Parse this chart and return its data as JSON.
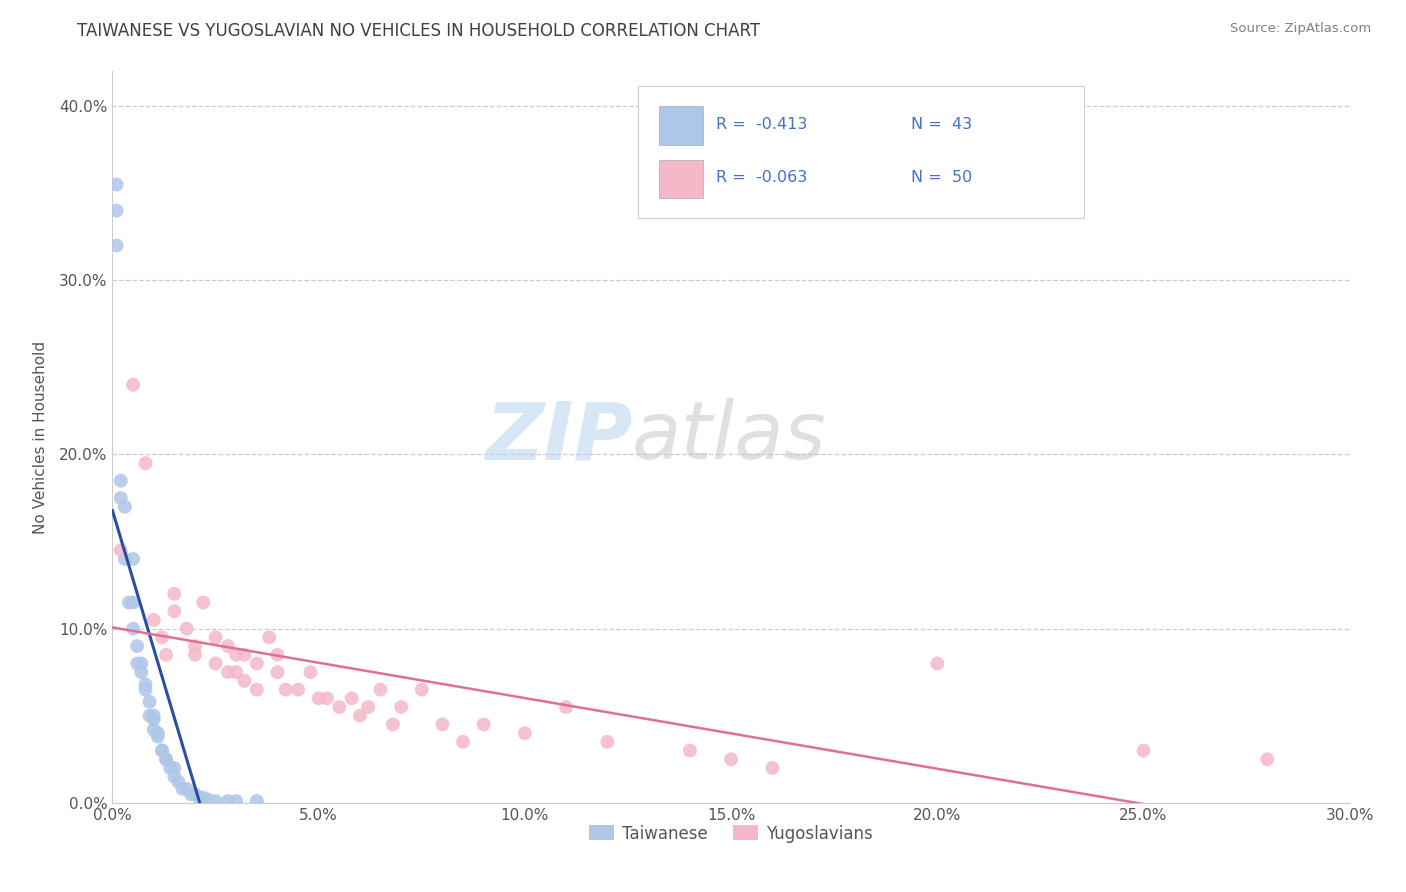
{
  "title": "TAIWANESE VS YUGOSLAVIAN NO VEHICLES IN HOUSEHOLD CORRELATION CHART",
  "source": "Source: ZipAtlas.com",
  "ylabel": "No Vehicles in Household",
  "xlabel": "",
  "xlim": [
    0.0,
    30.0
  ],
  "ylim": [
    0.0,
    42.0
  ],
  "x_ticks": [
    0.0,
    5.0,
    10.0,
    15.0,
    20.0,
    25.0,
    30.0
  ],
  "x_tick_labels": [
    "0.0%",
    "5.0%",
    "10.0%",
    "15.0%",
    "20.0%",
    "25.0%",
    "30.0%"
  ],
  "y_ticks": [
    0.0,
    10.0,
    20.0,
    30.0,
    40.0
  ],
  "y_tick_labels": [
    "0.0%",
    "10.0%",
    "20.0%",
    "30.0%",
    "40.0%"
  ],
  "grid_color": "#cccccc",
  "background_color": "#ffffff",
  "watermark_text": "ZIP",
  "watermark_text2": "atlas",
  "legend_r1": "-0.413",
  "legend_n1": "43",
  "legend_r2": "-0.063",
  "legend_n2": "50",
  "legend_label1": "Taiwanese",
  "legend_label2": "Yugoslavians",
  "scatter_color1": "#aec6e8",
  "scatter_color2": "#f4b8c8",
  "line_color1": "#2b4fa0",
  "line_color2": "#e07090",
  "title_color": "#404040",
  "source_color": "#808080",
  "legend_text_color": "#4472c4",
  "tw_x": [
    0.1,
    0.1,
    0.1,
    0.2,
    0.2,
    0.3,
    0.3,
    0.4,
    0.5,
    0.5,
    0.5,
    0.6,
    0.6,
    0.7,
    0.7,
    0.8,
    0.8,
    0.9,
    0.9,
    1.0,
    1.0,
    1.0,
    1.1,
    1.1,
    1.2,
    1.2,
    1.3,
    1.3,
    1.4,
    1.5,
    1.5,
    1.6,
    1.7,
    1.8,
    1.9,
    2.0,
    2.1,
    2.2,
    2.3,
    2.5,
    2.8,
    3.0,
    3.5
  ],
  "tw_y": [
    35.5,
    34.0,
    32.0,
    18.5,
    17.5,
    17.0,
    14.0,
    11.5,
    14.0,
    11.5,
    10.0,
    9.0,
    8.0,
    8.0,
    7.5,
    6.8,
    6.5,
    5.8,
    5.0,
    5.0,
    4.2,
    4.8,
    4.0,
    3.8,
    3.0,
    3.0,
    2.5,
    2.5,
    2.0,
    2.0,
    1.5,
    1.2,
    0.8,
    0.8,
    0.5,
    0.5,
    0.3,
    0.3,
    0.2,
    0.1,
    0.1,
    0.1,
    0.1
  ],
  "yu_x": [
    0.2,
    0.5,
    0.8,
    1.0,
    1.2,
    1.3,
    1.5,
    1.5,
    1.8,
    2.0,
    2.0,
    2.2,
    2.5,
    2.5,
    2.8,
    2.8,
    3.0,
    3.0,
    3.2,
    3.2,
    3.5,
    3.5,
    3.8,
    4.0,
    4.0,
    4.2,
    4.5,
    4.8,
    5.0,
    5.2,
    5.5,
    5.8,
    6.0,
    6.2,
    6.5,
    6.8,
    7.0,
    7.5,
    8.0,
    8.5,
    9.0,
    10.0,
    11.0,
    12.0,
    14.0,
    15.0,
    16.0,
    20.0,
    25.0,
    28.0
  ],
  "yu_y": [
    14.5,
    24.0,
    19.5,
    10.5,
    9.5,
    8.5,
    12.0,
    11.0,
    10.0,
    9.0,
    8.5,
    11.5,
    9.5,
    8.0,
    9.0,
    7.5,
    8.5,
    7.5,
    8.5,
    7.0,
    8.0,
    6.5,
    9.5,
    8.5,
    7.5,
    6.5,
    6.5,
    7.5,
    6.0,
    6.0,
    5.5,
    6.0,
    5.0,
    5.5,
    6.5,
    4.5,
    5.5,
    6.5,
    4.5,
    3.5,
    4.5,
    4.0,
    5.5,
    3.5,
    3.0,
    2.5,
    2.0,
    8.0,
    3.0,
    2.5
  ]
}
